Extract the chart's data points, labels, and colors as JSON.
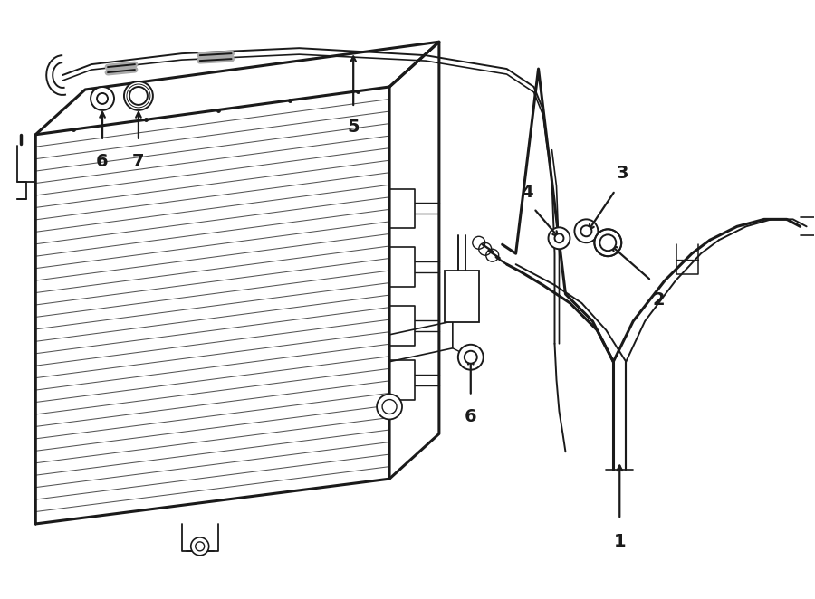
{
  "bg_color": "#ffffff",
  "line_color": "#1a1a1a",
  "lw": 1.4,
  "lw_thick": 2.2,
  "lw_thin": 0.8,
  "fig_w": 9.0,
  "fig_h": 6.62,
  "dpi": 100
}
